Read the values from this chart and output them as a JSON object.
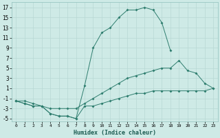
{
  "xlabel": "Humidex (Indice chaleur)",
  "background_color": "#ceeae6",
  "grid_color": "#b8d8d4",
  "line_color": "#2e7d6e",
  "xlim": [
    -0.5,
    23.5
  ],
  "ylim": [
    -5.5,
    18
  ],
  "xticks": [
    0,
    1,
    2,
    3,
    4,
    5,
    6,
    7,
    8,
    9,
    10,
    11,
    12,
    13,
    14,
    15,
    16,
    17,
    18,
    19,
    20,
    21,
    22,
    23
  ],
  "yticks": [
    -5,
    -3,
    -1,
    1,
    3,
    5,
    7,
    9,
    11,
    13,
    15,
    17
  ],
  "line1_x": [
    0,
    1,
    2,
    3,
    4,
    5,
    6,
    7,
    8,
    9,
    10,
    11,
    12,
    13,
    14,
    15,
    16,
    17,
    18,
    19,
    20,
    21,
    22,
    23
  ],
  "line1_y": [
    -1.5,
    -2,
    -2.5,
    -2.5,
    -4,
    -4.5,
    -4.5,
    -5,
    -2.5,
    -2.5,
    -2,
    -1.5,
    -1,
    -0.5,
    0,
    0,
    0.5,
    0.5,
    0.5,
    0.5,
    0.5,
    0.5,
    0.5,
    1
  ],
  "line2_x": [
    0,
    1,
    2,
    3,
    4,
    5,
    6,
    7,
    8,
    9,
    10,
    11,
    12,
    13,
    14,
    15,
    16,
    17,
    18
  ],
  "line2_y": [
    -1.5,
    -2,
    -2.5,
    -2.5,
    -4,
    -4.5,
    -4.5,
    -5,
    1.5,
    9,
    12,
    13,
    15,
    16.5,
    16.5,
    17,
    16.5,
    14,
    8.5
  ],
  "line3_x": [
    0,
    1,
    2,
    3,
    4,
    5,
    6,
    7,
    8,
    9,
    10,
    11,
    12,
    13,
    14,
    15,
    16,
    17,
    18,
    19,
    20,
    21,
    22,
    23
  ],
  "line3_y": [
    -1.5,
    -1.5,
    -2,
    -2.5,
    -3,
    -3,
    -3,
    -3,
    -2,
    -1,
    0,
    1,
    2,
    3,
    3.5,
    4,
    4.5,
    5,
    5,
    6.5,
    4.5,
    4,
    2,
    1
  ]
}
